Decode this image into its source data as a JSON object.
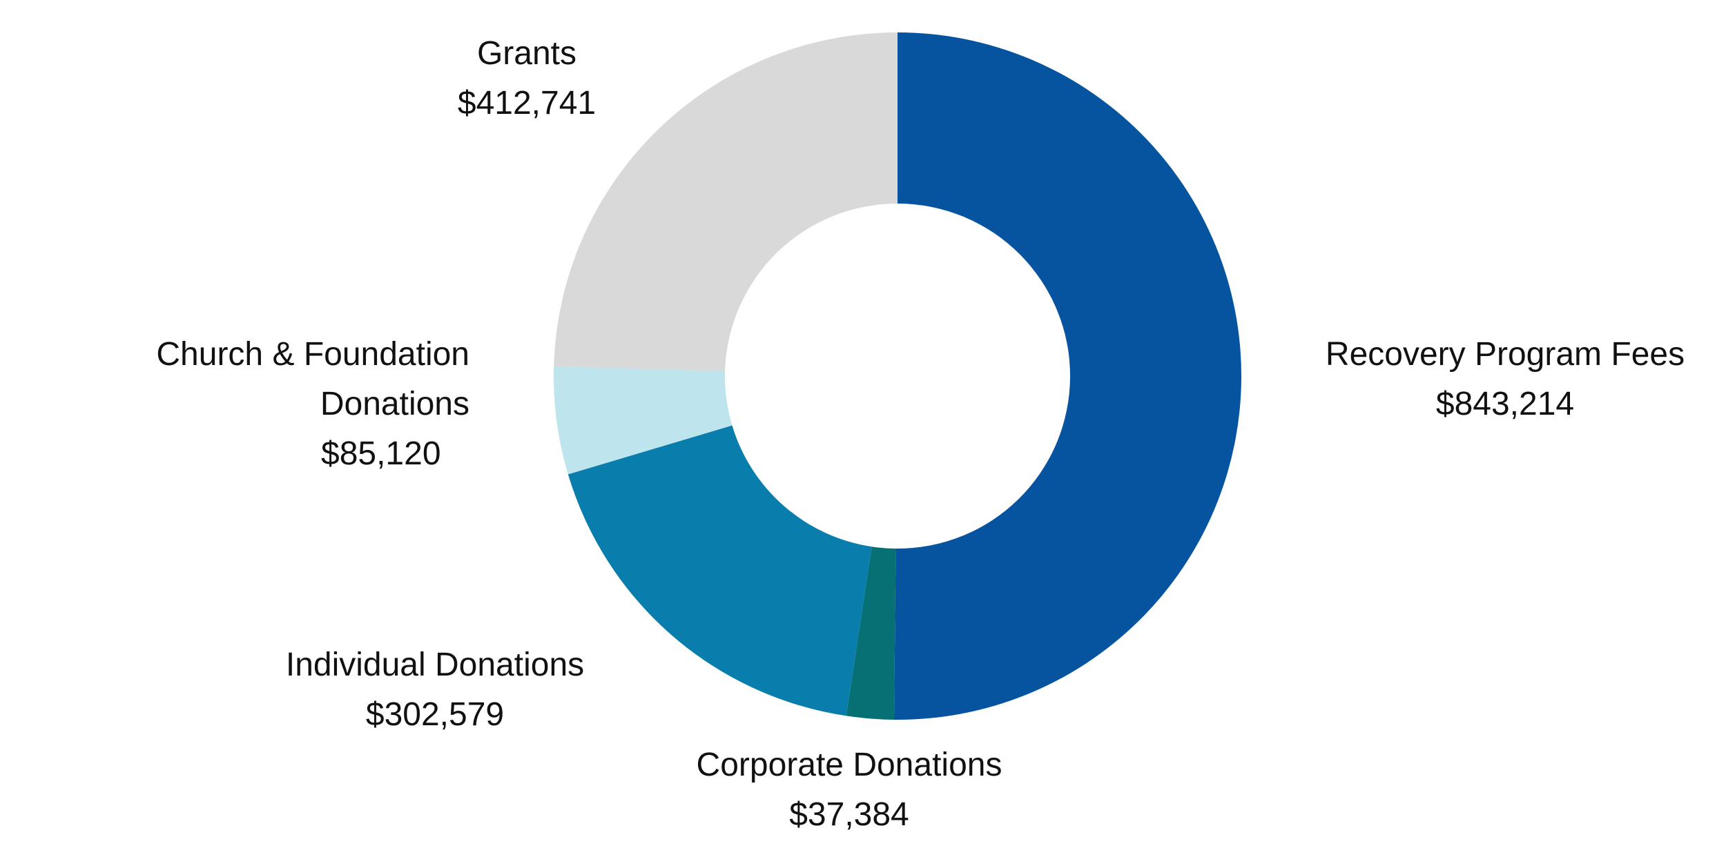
{
  "chart_data": {
    "type": "pie",
    "title": "",
    "style": "donut",
    "slices": [
      {
        "label": "Recovery Program Fees",
        "value": 843214,
        "value_label": "$843,214",
        "color": "#06549f"
      },
      {
        "label": "Corporate Donations",
        "value": 37384,
        "value_label": "$37,384",
        "color": "#077074"
      },
      {
        "label": "Individual Donations",
        "value": 302579,
        "value_label": "$302,579",
        "color": "#097ead"
      },
      {
        "label": "Church & Foundation Donations",
        "label_lines": [
          "Church & Foundation",
          "Donations"
        ],
        "value": 85120,
        "value_label": "$85,120",
        "color": "#bee4ed"
      },
      {
        "label": "Grants",
        "value": 412741,
        "value_label": "$412,741",
        "color": "#d9d9d9"
      }
    ],
    "start": "12 o'clock",
    "direction": "clockwise",
    "legend": "none"
  }
}
